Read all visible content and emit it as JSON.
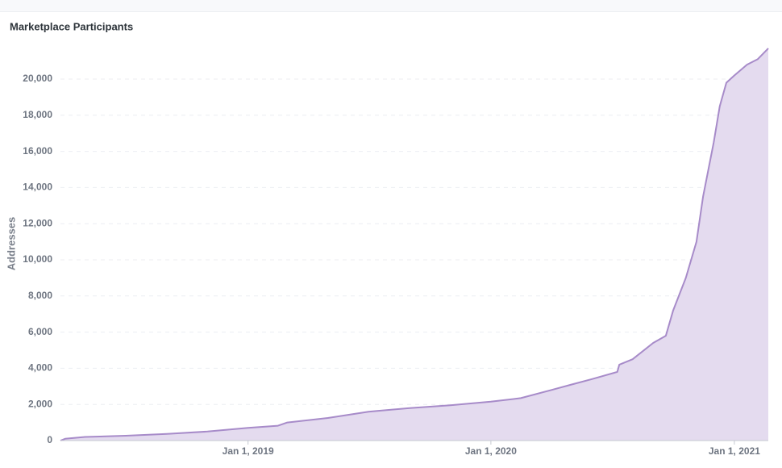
{
  "chart_data": {
    "type": "area",
    "title": "Marketplace Participants",
    "y_label": "Addresses",
    "x": [
      "2018-03-25",
      "2018-04-01",
      "2018-05-01",
      "2018-07-01",
      "2018-09-01",
      "2018-11-01",
      "2019-01-01",
      "2019-02-15",
      "2019-03-01",
      "2019-05-01",
      "2019-07-01",
      "2019-09-01",
      "2019-11-01",
      "2020-01-01",
      "2020-02-15",
      "2020-04-01",
      "2020-05-01",
      "2020-06-01",
      "2020-07-09",
      "2020-07-12",
      "2020-08-01",
      "2020-09-01",
      "2020-09-20",
      "2020-10-01",
      "2020-10-20",
      "2020-11-05",
      "2020-11-15",
      "2020-12-01",
      "2020-12-10",
      "2020-12-20",
      "2021-01-01",
      "2021-01-20",
      "2021-02-05",
      "2021-02-21"
    ],
    "series": [
      {
        "name": "Addresses",
        "color": "#a78bc9",
        "values": [
          0,
          100,
          200,
          270,
          370,
          500,
          700,
          820,
          1000,
          1250,
          1600,
          1800,
          1950,
          2150,
          2350,
          2800,
          3100,
          3400,
          3800,
          4200,
          4500,
          5400,
          5800,
          7200,
          9000,
          11000,
          13500,
          16500,
          18500,
          19800,
          20200,
          20800,
          21100,
          21700
        ]
      }
    ],
    "fill_color": "#e4dbef",
    "xlim": [
      "2018-03-25",
      "2021-02-21"
    ],
    "xticks": [
      {
        "value": "2019-01-01",
        "label": "Jan 1, 2019"
      },
      {
        "value": "2020-01-01",
        "label": "Jan 1, 2020"
      },
      {
        "value": "2021-01-01",
        "label": "Jan 1, 2021"
      }
    ],
    "ylim": [
      0,
      22000
    ],
    "yticks": [
      0,
      {
        "value": 2000,
        "label": "2,000"
      },
      {
        "value": 4000,
        "label": "4,000"
      },
      {
        "value": 6000,
        "label": "6,000"
      },
      {
        "value": 8000,
        "label": "8,000"
      },
      {
        "value": 10000,
        "label": "10,000"
      },
      {
        "value": 12000,
        "label": "12,000"
      },
      {
        "value": 14000,
        "label": "14,000"
      },
      {
        "value": 16000,
        "label": "16,000"
      },
      {
        "value": 18000,
        "label": "18,000"
      },
      {
        "value": 20000,
        "label": "20,000"
      }
    ],
    "grid": true
  }
}
